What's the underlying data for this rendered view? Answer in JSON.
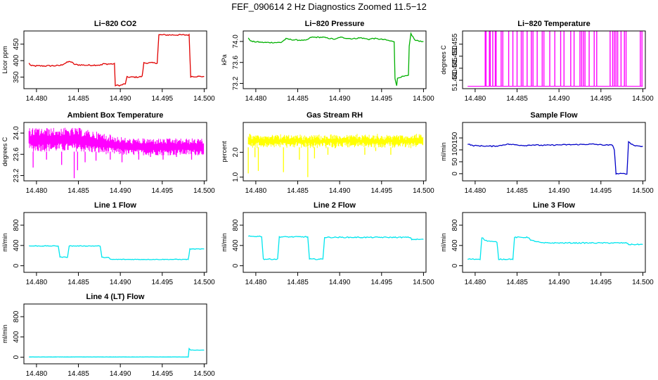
{
  "figure": {
    "title": "FEF_090614  2 Hz Diagnostics Zoomed 11.5−12"
  },
  "colors": {
    "red": "#e00000",
    "green": "#00b000",
    "magenta": "#ff00ff",
    "yellow": "#ffff00",
    "blue": "#0000c8",
    "cyan": "#00e5ee"
  },
  "chart_data": [
    {
      "id": "co2",
      "type": "line",
      "title": "Li−820 CO2",
      "ylabel": "Licor ppm",
      "color": "red",
      "xlim": [
        14.4785,
        14.5003
      ],
      "ylim": [
        315,
        490
      ],
      "xticks": [
        "14.480",
        "14.485",
        "14.490",
        "14.495",
        "14.500"
      ],
      "xtick_values": [
        14.48,
        14.485,
        14.49,
        14.495,
        14.5
      ],
      "yticks": [
        "350",
        "400",
        "450"
      ],
      "ytick_values": [
        350,
        400,
        450
      ],
      "noise": 2,
      "x": [
        14.4791,
        14.4794,
        14.481,
        14.4828,
        14.4834,
        14.484,
        14.4846,
        14.486,
        14.4878,
        14.4879,
        14.4893,
        14.4894,
        14.49,
        14.4906,
        14.4908,
        14.492,
        14.4926,
        14.4928,
        14.4944,
        14.4946,
        14.4982,
        14.4984,
        14.5
      ],
      "y": [
        392,
        384,
        384,
        385,
        392,
        398,
        388,
        386,
        387,
        390,
        390,
        325,
        325,
        330,
        350,
        350,
        352,
        393,
        393,
        478,
        478,
        352,
        352
      ]
    },
    {
      "id": "pressure",
      "type": "line",
      "title": "Li−820 Pressure",
      "ylabel": "kPa",
      "color": "green",
      "xlim": [
        14.4785,
        14.5003
      ],
      "ylim": [
        73.1,
        74.2
      ],
      "xticks": [
        "14.480",
        "14.485",
        "14.490",
        "14.495",
        "14.500"
      ],
      "xtick_values": [
        14.48,
        14.485,
        14.49,
        14.495,
        14.5
      ],
      "yticks": [
        "73.2",
        "73.6",
        "74.0"
      ],
      "ytick_values": [
        73.2,
        73.6,
        74.0
      ],
      "noise": 0.01,
      "x": [
        14.4791,
        14.4795,
        14.481,
        14.483,
        14.4836,
        14.4845,
        14.486,
        14.4866,
        14.488,
        14.4895,
        14.49,
        14.4915,
        14.4925,
        14.4935,
        14.494,
        14.4955,
        14.4963,
        14.4965,
        14.4966,
        14.4968,
        14.4969,
        14.4972,
        14.4982,
        14.4983,
        14.4985,
        14.499,
        14.5
      ],
      "y": [
        74.06,
        74.0,
        73.98,
        73.98,
        74.05,
        74.03,
        74.02,
        74.08,
        74.08,
        74.04,
        74.08,
        74.05,
        74.07,
        74.04,
        74.06,
        74.03,
        74.0,
        74.0,
        73.3,
        73.15,
        73.3,
        73.32,
        73.35,
        73.9,
        74.15,
        74.02,
        74.0
      ]
    },
    {
      "id": "licor-temp",
      "type": "line",
      "title": "Li−820 Temperature",
      "ylabel": "degrees C",
      "color": "magenta",
      "xlim": [
        14.4785,
        14.5003
      ],
      "ylim": [
        51.4365,
        51.4605
      ],
      "xticks": [
        "14.480",
        "14.485",
        "14.490",
        "14.495",
        "14.500"
      ],
      "xtick_values": [
        14.48,
        14.485,
        14.49,
        14.495,
        14.5
      ],
      "yticks": [
        "51.440",
        "51.445",
        "51.450",
        "51.455"
      ],
      "ytick_values": [
        51.44,
        51.445,
        51.45,
        51.455
      ],
      "baseline": 51.4375,
      "spike_top": 51.4605,
      "spikes": [
        14.4812,
        14.4813,
        14.4817,
        14.4818,
        14.4821,
        14.4824,
        14.4825,
        14.4831,
        14.4833,
        14.484,
        14.4845,
        14.485,
        14.4855,
        14.4857,
        14.4862,
        14.4867,
        14.4869,
        14.4874,
        14.488,
        14.4882,
        14.4889,
        14.4895,
        14.4902,
        14.4906,
        14.4914,
        14.4918,
        14.4925,
        14.4927,
        14.4929,
        14.4931,
        14.4936,
        14.4942,
        14.4945,
        14.4961,
        14.4964,
        14.4966,
        14.4968,
        14.497,
        14.4974,
        14.4978,
        14.498,
        14.4997,
        14.4999
      ]
    },
    {
      "id": "ambient-temp",
      "type": "line",
      "title": "Ambient Box Temperature",
      "ylabel": "degrees C",
      "color": "magenta",
      "xlim": [
        14.4785,
        14.5003
      ],
      "ylim": [
        23.1,
        24.2
      ],
      "xticks": [
        "14.480",
        "14.485",
        "14.490",
        "14.495",
        "14.500"
      ],
      "xtick_values": [
        14.48,
        14.485,
        14.49,
        14.495,
        14.5
      ],
      "yticks": [
        "23.2",
        "23.6",
        "24.0"
      ],
      "ytick_values": [
        23.2,
        23.6,
        24.0
      ],
      "band_top": [
        24.1,
        24.1,
        24.1,
        24.0,
        23.9,
        23.9,
        23.9
      ],
      "band_bottom": [
        23.65,
        23.65,
        23.65,
        23.6,
        23.58,
        23.58,
        23.58
      ],
      "band_x": [
        14.4791,
        14.482,
        14.485,
        14.488,
        14.491,
        14.495,
        14.5
      ],
      "outliers_x": [
        14.4796,
        14.4812,
        14.483,
        14.4845,
        14.4849,
        14.4858,
        14.4871,
        14.4888,
        14.4902,
        14.4922,
        14.4936,
        14.4951,
        14.4967,
        14.4985
      ],
      "outliers_y": [
        23.35,
        23.5,
        23.4,
        23.15,
        23.3,
        23.45,
        23.48,
        23.5,
        23.45,
        23.5,
        23.55,
        23.5,
        23.55,
        23.5
      ]
    },
    {
      "id": "rh",
      "type": "line",
      "title": "Gas Stream RH",
      "ylabel": "percent",
      "color": "yellow",
      "xlim": [
        14.4785,
        14.5003
      ],
      "ylim": [
        0.85,
        3.2
      ],
      "xticks": [
        "14.480",
        "14.485",
        "14.490",
        "14.495",
        "14.500"
      ],
      "xtick_values": [
        14.48,
        14.485,
        14.49,
        14.495,
        14.5
      ],
      "yticks": [
        "1.0",
        "2.0"
      ],
      "ytick_values": [
        1.0,
        2.0
      ],
      "band_center": 2.45,
      "band_half": 0.25,
      "outliers_x": [
        14.4791,
        14.4799,
        14.4803,
        14.4833,
        14.4852,
        14.4862,
        14.487,
        14.4886,
        14.493,
        14.4943,
        14.4961
      ],
      "outliers_y": [
        1.15,
        1.8,
        1.25,
        1.2,
        1.7,
        1.0,
        1.75,
        1.9,
        1.9,
        2.05,
        1.9
      ]
    },
    {
      "id": "sample-flow",
      "type": "line",
      "title": "Sample Flow",
      "ylabel": "ml/min",
      "color": "blue",
      "xlim": [
        14.4785,
        14.5003
      ],
      "ylim": [
        -30,
        215
      ],
      "xticks": [
        "14.480",
        "14.485",
        "14.490",
        "14.495",
        "14.500"
      ],
      "xtick_values": [
        14.48,
        14.485,
        14.49,
        14.495,
        14.5
      ],
      "yticks": [
        "0",
        "50",
        "100",
        "150"
      ],
      "ytick_values": [
        0,
        50,
        100,
        150
      ],
      "noise": 2,
      "x": [
        14.4791,
        14.4797,
        14.482,
        14.4828,
        14.4838,
        14.486,
        14.4868,
        14.488,
        14.49,
        14.492,
        14.494,
        14.4955,
        14.4964,
        14.4966,
        14.4968,
        14.4981,
        14.4983,
        14.4985,
        14.499,
        14.5
      ],
      "y": [
        125,
        118,
        115,
        117,
        124,
        118,
        121,
        119,
        121,
        122,
        124,
        120,
        120,
        100,
        0,
        0,
        135,
        128,
        118,
        115
      ]
    },
    {
      "id": "line1",
      "type": "line",
      "title": "Line 1 Flow",
      "ylabel": "ml/min",
      "color": "cyan",
      "xlim": [
        14.4785,
        14.5003
      ],
      "ylim": [
        -130,
        1050
      ],
      "xticks": [
        "14.480",
        "14.485",
        "14.490",
        "14.495",
        "14.500"
      ],
      "xtick_values": [
        14.48,
        14.485,
        14.49,
        14.495,
        14.5
      ],
      "yticks": [
        "0",
        "400",
        "800"
      ],
      "ytick_values": [
        0,
        400,
        800
      ],
      "noise": 6,
      "x": [
        14.4791,
        14.4826,
        14.4828,
        14.4837,
        14.4839,
        14.4876,
        14.4878,
        14.4886,
        14.4888,
        14.4981,
        14.4983,
        14.5
      ],
      "y": [
        390,
        390,
        170,
        170,
        390,
        390,
        165,
        165,
        125,
        125,
        330,
        330
      ]
    },
    {
      "id": "line2",
      "type": "line",
      "title": "Line 2 Flow",
      "ylabel": "ml/min",
      "color": "cyan",
      "xlim": [
        14.4785,
        14.5003
      ],
      "ylim": [
        -130,
        1050
      ],
      "xticks": [
        "14.480",
        "14.485",
        "14.490",
        "14.495",
        "14.500"
      ],
      "xtick_values": [
        14.48,
        14.485,
        14.49,
        14.495,
        14.5
      ],
      "yticks": [
        "0",
        "400",
        "800"
      ],
      "ytick_values": [
        0,
        400,
        800
      ],
      "noise": 10,
      "x": [
        14.4791,
        14.4807,
        14.4809,
        14.4826,
        14.4828,
        14.4862,
        14.4864,
        14.488,
        14.4882,
        14.4984,
        14.4986,
        14.5
      ],
      "y": [
        580,
        580,
        130,
        130,
        570,
        570,
        130,
        130,
        560,
        560,
        520,
        520
      ]
    },
    {
      "id": "line3",
      "type": "line",
      "title": "Line 3 Flow",
      "ylabel": "ml/min",
      "color": "cyan",
      "xlim": [
        14.4785,
        14.5003
      ],
      "ylim": [
        -130,
        1050
      ],
      "xticks": [
        "14.480",
        "14.485",
        "14.490",
        "14.495",
        "14.500"
      ],
      "xtick_values": [
        14.48,
        14.485,
        14.49,
        14.495,
        14.5
      ],
      "yticks": [
        "0",
        "400",
        "800"
      ],
      "ytick_values": [
        0,
        400,
        800
      ],
      "noise": 10,
      "x": [
        14.4791,
        14.4806,
        14.4808,
        14.4812,
        14.4822,
        14.4826,
        14.4828,
        14.4845,
        14.4847,
        14.4864,
        14.4866,
        14.487,
        14.488,
        14.4981,
        14.4983,
        14.5
      ],
      "y": [
        130,
        130,
        560,
        500,
        470,
        470,
        130,
        130,
        560,
        560,
        500,
        490,
        450,
        450,
        420,
        420
      ]
    },
    {
      "id": "line4",
      "type": "line",
      "title": "Line 4 (LT) Flow",
      "ylabel": "ml/min",
      "color": "cyan",
      "xlim": [
        14.4785,
        14.5003
      ],
      "ylim": [
        -130,
        1050
      ],
      "xticks": [
        "14.480",
        "14.485",
        "14.490",
        "14.495",
        "14.500"
      ],
      "xtick_values": [
        14.48,
        14.485,
        14.49,
        14.495,
        14.5
      ],
      "yticks": [
        "0",
        "400",
        "800"
      ],
      "ytick_values": [
        0,
        400,
        800
      ],
      "noise": 2,
      "x": [
        14.4791,
        14.4981,
        14.4982,
        14.4984,
        14.5
      ],
      "y": [
        5,
        5,
        170,
        140,
        140
      ]
    }
  ]
}
